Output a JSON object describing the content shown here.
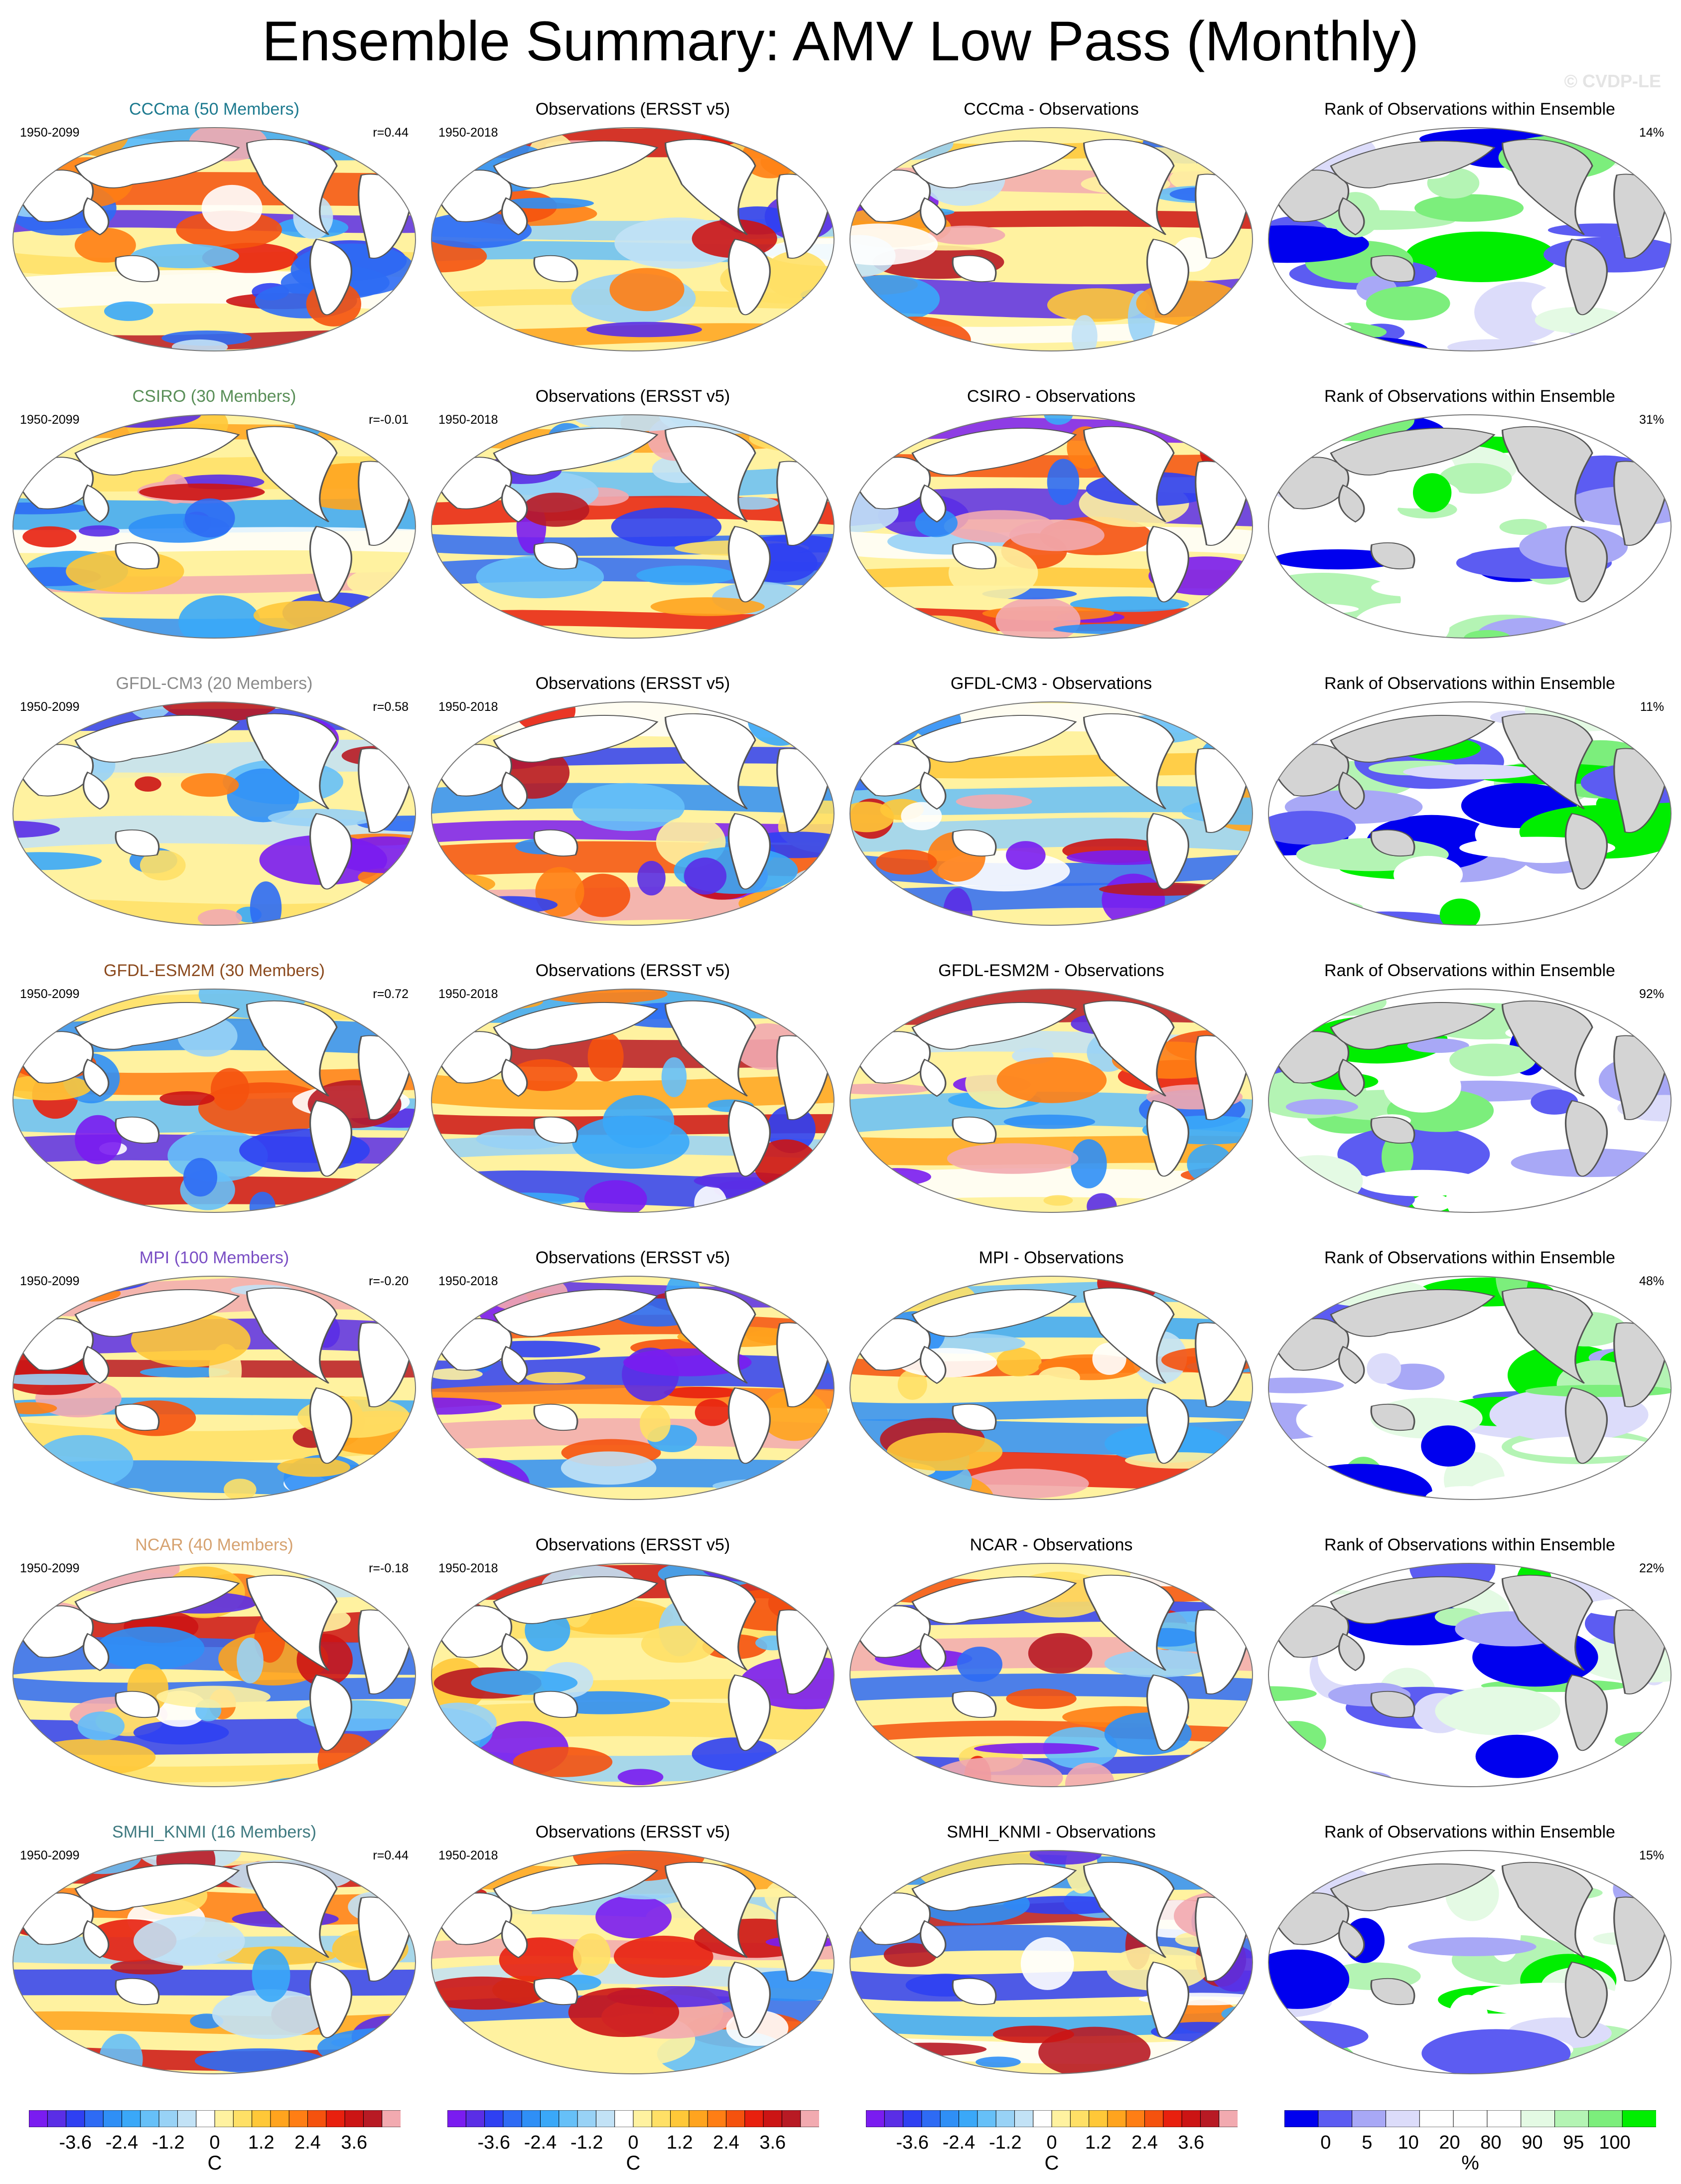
{
  "page": {
    "title": "Ensemble Summary: AMV Low Pass (Monthly)",
    "watermark": "© CVDP-LE"
  },
  "colors": {
    "model_title_colors": {
      "CCCma": "#1d7a8f",
      "CSIRO": "#5a8f58",
      "GFDL-CM3": "#8a8a8a",
      "GFDL-ESM2M": "#8b4a1e",
      "MPI": "#7a4ec4",
      "NCAR": "#d6a270",
      "SMHI_KNMI": "#3f7a80"
    },
    "land": "#ffffff",
    "rank_land": "#d4d4d4",
    "coast": "#555555"
  },
  "chart_data": {
    "type": "heatmap",
    "projection": "global map",
    "rows": [
      {
        "model": "CCCma",
        "ensemble_title": "CCCma (50 Members)",
        "period_model": "1950-2099",
        "pattern_r": "r=0.44",
        "obs_title": "Observations (ERSST v5)",
        "period_obs": "1950-2018",
        "diff_title": "CCCma - Observations",
        "rank_title": "Rank of Observations within Ensemble",
        "rank_pct": "14%"
      },
      {
        "model": "CSIRO",
        "ensemble_title": "CSIRO (30 Members)",
        "period_model": "1950-2099",
        "pattern_r": "r=-0.01",
        "obs_title": "Observations (ERSST v5)",
        "period_obs": "1950-2018",
        "diff_title": "CSIRO - Observations",
        "rank_title": "Rank of Observations within Ensemble",
        "rank_pct": "31%"
      },
      {
        "model": "GFDL-CM3",
        "ensemble_title": "GFDL-CM3 (20 Members)",
        "period_model": "1950-2099",
        "pattern_r": "r=0.58",
        "obs_title": "Observations (ERSST v5)",
        "period_obs": "1950-2018",
        "diff_title": "GFDL-CM3 - Observations",
        "rank_title": "Rank of Observations within Ensemble",
        "rank_pct": "11%"
      },
      {
        "model": "GFDL-ESM2M",
        "ensemble_title": "GFDL-ESM2M (30 Members)",
        "period_model": "1950-2099",
        "pattern_r": "r=0.72",
        "obs_title": "Observations (ERSST v5)",
        "period_obs": "1950-2018",
        "diff_title": "GFDL-ESM2M - Observations",
        "rank_title": "Rank of Observations within Ensemble",
        "rank_pct": "92%"
      },
      {
        "model": "MPI",
        "ensemble_title": "MPI (100 Members)",
        "period_model": "1950-2099",
        "pattern_r": "r=-0.20",
        "obs_title": "Observations (ERSST v5)",
        "period_obs": "1950-2018",
        "diff_title": "MPI - Observations",
        "rank_title": "Rank of Observations within Ensemble",
        "rank_pct": "48%"
      },
      {
        "model": "NCAR",
        "ensemble_title": "NCAR (40 Members)",
        "period_model": "1950-2099",
        "pattern_r": "r=-0.18",
        "obs_title": "Observations (ERSST v5)",
        "period_obs": "1950-2018",
        "diff_title": "NCAR - Observations",
        "rank_title": "Rank of Observations within Ensemble",
        "rank_pct": "22%"
      },
      {
        "model": "SMHI_KNMI",
        "ensemble_title": "SMHI_KNMI (16 Members)",
        "period_model": "1950-2099",
        "pattern_r": "r=0.44",
        "obs_title": "Observations (ERSST v5)",
        "period_obs": "1950-2018",
        "diff_title": "SMHI_KNMI - Observations",
        "rank_title": "Rank of Observations within Ensemble",
        "rank_pct": "15%"
      }
    ],
    "temperature_colorbar": {
      "unit": "C",
      "tick_labels": [
        "-3.6",
        "-2.4",
        "-1.2",
        "0",
        "1.2",
        "2.4",
        "3.6"
      ],
      "colors": [
        "#7a1cf0",
        "#5a2ee6",
        "#2f40f2",
        "#2e6bf4",
        "#2f8ff6",
        "#3aa8f8",
        "#66c0f8",
        "#98d2f6",
        "#c2e2f6",
        "#ffffff",
        "#fff2a0",
        "#ffe066",
        "#ffc838",
        "#ffa41e",
        "#ff7e14",
        "#f5520e",
        "#e8200e",
        "#cc1414",
        "#b81a24",
        "#f2aab0"
      ]
    },
    "rank_colorbar": {
      "unit": "%",
      "tick_labels": [
        "0",
        "5",
        "10",
        "20",
        "80",
        "90",
        "95",
        "100"
      ],
      "colors": [
        "#0000ee",
        "#5c5cf2",
        "#a8a8f6",
        "#dcdcfa",
        "#ffffff",
        "#ffffff",
        "#ffffff",
        "#e4fae4",
        "#b4f4b4",
        "#7cee7c",
        "#00ee00"
      ]
    }
  }
}
